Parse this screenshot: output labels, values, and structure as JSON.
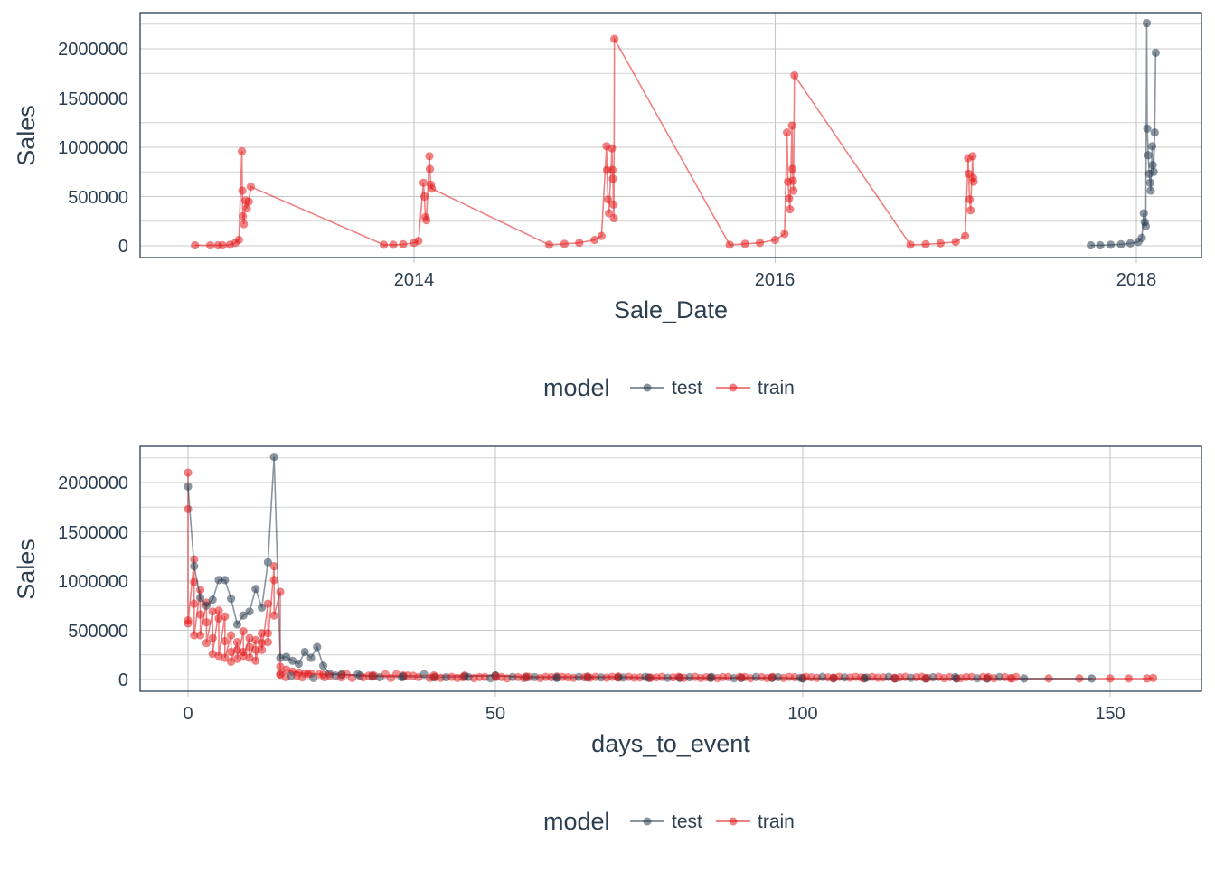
{
  "colors": {
    "test": "#2c3e50",
    "train": "#e31a1c",
    "grid": "#c8c8c8",
    "text": "#2c3e50"
  },
  "chart_data": [
    {
      "type": "line",
      "title": "",
      "xlabel": "Sale_Date",
      "ylabel": "Sales",
      "x_ticks": [
        "2014",
        "2016",
        "2018"
      ],
      "y_ticks": [
        "0",
        "500000",
        "1000000",
        "1500000",
        "2000000"
      ],
      "ylim": [
        -100000,
        2370000
      ],
      "xlim": [
        "2012-09",
        "2018-06"
      ],
      "grid": true,
      "legend": {
        "title": "model",
        "position": "bottom",
        "entries": [
          "test",
          "train"
        ]
      },
      "series": [
        {
          "name": "train",
          "points": [
            [
              "2012-10-15",
              5000
            ],
            [
              "2012-11-15",
              5000
            ],
            [
              "2012-12-01",
              5000
            ],
            [
              "2012-12-10",
              5000
            ],
            [
              "2012-12-25",
              10000
            ],
            [
              "2013-01-05",
              30000
            ],
            [
              "2013-01-12",
              60000
            ],
            [
              "2013-01-18",
              960000
            ],
            [
              "2013-01-19",
              560000
            ],
            [
              "2013-01-20",
              300000
            ],
            [
              "2013-01-22",
              220000
            ],
            [
              "2013-01-25",
              460000
            ],
            [
              "2013-01-28",
              380000
            ],
            [
              "2013-02-01",
              450000
            ],
            [
              "2013-02-05",
              600000
            ],
            [
              "2013-11-01",
              10000
            ],
            [
              "2013-11-20",
              10000
            ],
            [
              "2013-12-10",
              15000
            ],
            [
              "2014-01-01",
              30000
            ],
            [
              "2014-01-10",
              50000
            ],
            [
              "2014-01-20",
              640000
            ],
            [
              "2014-01-22",
              500000
            ],
            [
              "2014-01-24",
              290000
            ],
            [
              "2014-01-26",
              260000
            ],
            [
              "2014-02-01",
              910000
            ],
            [
              "2014-02-02",
              780000
            ],
            [
              "2014-02-04",
              620000
            ],
            [
              "2014-02-06",
              580000
            ],
            [
              "2014-10-01",
              10000
            ],
            [
              "2014-11-01",
              20000
            ],
            [
              "2014-12-01",
              30000
            ],
            [
              "2015-01-01",
              60000
            ],
            [
              "2015-01-15",
              100000
            ],
            [
              "2015-01-25",
              1010000
            ],
            [
              "2015-01-26",
              770000
            ],
            [
              "2015-01-28",
              470000
            ],
            [
              "2015-01-30",
              330000
            ],
            [
              "2015-02-05",
              990000
            ],
            [
              "2015-02-06",
              770000
            ],
            [
              "2015-02-07",
              680000
            ],
            [
              "2015-02-08",
              420000
            ],
            [
              "2015-02-09",
              280000
            ],
            [
              "2015-02-10",
              2100000
            ],
            [
              "2015-10-01",
              10000
            ],
            [
              "2015-11-01",
              20000
            ],
            [
              "2015-12-01",
              30000
            ],
            [
              "2016-01-01",
              60000
            ],
            [
              "2016-01-20",
              120000
            ],
            [
              "2016-01-25",
              1150000
            ],
            [
              "2016-01-27",
              650000
            ],
            [
              "2016-01-29",
              480000
            ],
            [
              "2016-01-31",
              370000
            ],
            [
              "2016-02-04",
              1220000
            ],
            [
              "2016-02-05",
              780000
            ],
            [
              "2016-02-06",
              660000
            ],
            [
              "2016-02-07",
              560000
            ],
            [
              "2016-02-09",
              1730000
            ],
            [
              "2016-10-01",
              10000
            ],
            [
              "2016-11-01",
              15000
            ],
            [
              "2016-12-01",
              25000
            ],
            [
              "2017-01-01",
              40000
            ],
            [
              "2017-01-20",
              100000
            ],
            [
              "2017-01-26",
              890000
            ],
            [
              "2017-01-27",
              730000
            ],
            [
              "2017-01-29",
              470000
            ],
            [
              "2017-01-31",
              360000
            ],
            [
              "2017-02-04",
              910000
            ],
            [
              "2017-02-05",
              690000
            ],
            [
              "2017-02-06",
              650000
            ]
          ]
        },
        {
          "name": "test",
          "points": [
            [
              "2017-10-01",
              5000
            ],
            [
              "2017-10-20",
              5000
            ],
            [
              "2017-11-10",
              10000
            ],
            [
              "2017-12-01",
              15000
            ],
            [
              "2017-12-20",
              25000
            ],
            [
              "2018-01-05",
              40000
            ],
            [
              "2018-01-12",
              80000
            ],
            [
              "2018-01-16",
              330000
            ],
            [
              "2018-01-18",
              240000
            ],
            [
              "2018-01-20",
              200000
            ],
            [
              "2018-01-22",
              2260000
            ],
            [
              "2018-01-23",
              1190000
            ],
            [
              "2018-01-25",
              920000
            ],
            [
              "2018-01-27",
              730000
            ],
            [
              "2018-01-29",
              640000
            ],
            [
              "2018-01-30",
              560000
            ],
            [
              "2018-02-02",
              1010000
            ],
            [
              "2018-02-03",
              820000
            ],
            [
              "2018-02-05",
              750000
            ],
            [
              "2018-02-07",
              1150000
            ],
            [
              "2018-02-09",
              1960000
            ]
          ]
        }
      ]
    },
    {
      "type": "line",
      "title": "",
      "xlabel": "days_to_event",
      "ylabel": "Sales",
      "x_ticks": [
        "0",
        "50",
        "100",
        "150"
      ],
      "y_ticks": [
        "0",
        "500000",
        "1000000",
        "1500000",
        "2000000"
      ],
      "xlim": [
        -7,
        165
      ],
      "ylim": [
        -100000,
        2370000
      ],
      "grid": true,
      "legend": {
        "title": "model",
        "position": "bottom",
        "entries": [
          "test",
          "train"
        ]
      },
      "series": [
        {
          "name": "test",
          "x": [
            0,
            1,
            2,
            3,
            4,
            5,
            6,
            7,
            8,
            9,
            10,
            11,
            12,
            13,
            14,
            15,
            16,
            17,
            18,
            19,
            20,
            21,
            22,
            23,
            25,
            28,
            30,
            35,
            40,
            45,
            50,
            55,
            60,
            65,
            70,
            75,
            80,
            85,
            90,
            95,
            100,
            105,
            110,
            115,
            120,
            125,
            130,
            136,
            147
          ],
          "y": [
            1960000,
            1150000,
            830000,
            750000,
            810000,
            1010000,
            1010000,
            820000,
            560000,
            650000,
            690000,
            920000,
            730000,
            1190000,
            2260000,
            220000,
            230000,
            190000,
            160000,
            280000,
            220000,
            330000,
            140000,
            60000,
            50000,
            40000,
            30000,
            30000,
            20000,
            30000,
            40000,
            20000,
            20000,
            20000,
            20000,
            15000,
            15000,
            15000,
            15000,
            15000,
            10000,
            10000,
            10000,
            10000,
            10000,
            10000,
            10000,
            10000,
            10000
          ]
        },
        {
          "name": "train",
          "x": [
            0,
            0,
            0,
            0,
            1,
            1,
            1,
            1,
            2,
            2,
            2,
            3,
            3,
            3,
            4,
            4,
            4,
            5,
            5,
            5,
            6,
            6,
            6,
            7,
            7,
            7,
            8,
            8,
            8,
            9,
            9,
            9,
            10,
            10,
            10,
            11,
            11,
            11,
            12,
            12,
            12,
            13,
            13,
            13,
            14,
            14,
            14,
            15,
            15,
            15,
            16,
            17,
            18,
            19,
            20,
            22,
            25,
            30,
            35,
            40,
            45,
            50,
            55,
            60,
            65,
            70,
            75,
            80,
            85,
            90,
            95,
            100,
            105,
            110,
            115,
            120,
            125,
            130,
            134,
            140,
            145,
            150,
            153,
            156,
            157
          ],
          "y": [
            2100000,
            1730000,
            600000,
            570000,
            1220000,
            990000,
            770000,
            450000,
            910000,
            660000,
            450000,
            780000,
            580000,
            370000,
            690000,
            420000,
            260000,
            700000,
            620000,
            240000,
            640000,
            390000,
            220000,
            450000,
            280000,
            180000,
            380000,
            300000,
            210000,
            490000,
            280000,
            240000,
            420000,
            330000,
            220000,
            400000,
            300000,
            190000,
            470000,
            370000,
            300000,
            770000,
            470000,
            380000,
            1150000,
            1010000,
            650000,
            890000,
            130000,
            50000,
            100000,
            80000,
            70000,
            60000,
            60000,
            50000,
            50000,
            40000,
            40000,
            40000,
            40000,
            40000,
            30000,
            30000,
            30000,
            30000,
            20000,
            20000,
            20000,
            20000,
            20000,
            15000,
            15000,
            15000,
            10000,
            10000,
            10000,
            10000,
            10000,
            10000,
            10000,
            10000,
            10000,
            10000,
            15000
          ]
        }
      ]
    }
  ],
  "panels": [
    {
      "ylabel": "Sales",
      "xlabel": "Sale_Date",
      "y_ticks": [
        "0",
        "500000",
        "1000000",
        "1500000",
        "2000000"
      ],
      "x_ticks": [
        "2014",
        "2016",
        "2018"
      ]
    },
    {
      "ylabel": "Sales",
      "xlabel": "days_to_event",
      "y_ticks": [
        "0",
        "500000",
        "1000000",
        "1500000",
        "2000000"
      ],
      "x_ticks": [
        "0",
        "50",
        "100",
        "150"
      ]
    }
  ],
  "legend": {
    "title": "model",
    "items": [
      "test",
      "train"
    ]
  }
}
